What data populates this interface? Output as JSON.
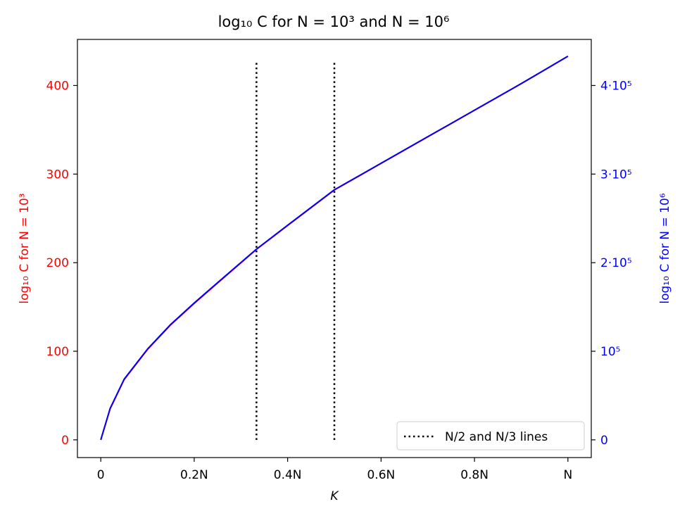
{
  "chart_data": {
    "type": "line",
    "title": "log₁₀ C for N = 10³ and N = 10⁶",
    "xlabel": "K",
    "ylabel_left": "log₁₀ C for N = 10³",
    "ylabel_right": "log₁₀ C for N = 10⁶",
    "xlim": [
      -0.05,
      1.05
    ],
    "ylim_left": [
      -20,
      452
    ],
    "ylim_right": [
      -20000,
      452000
    ],
    "x_ticks": [
      {
        "value": 0,
        "label": "0"
      },
      {
        "value": 0.2,
        "label": "0.2N"
      },
      {
        "value": 0.4,
        "label": "0.4N"
      },
      {
        "value": 0.6,
        "label": "0.6N"
      },
      {
        "value": 0.8,
        "label": "0.8N"
      },
      {
        "value": 1.0,
        "label": "N"
      }
    ],
    "y_ticks_left": [
      {
        "value": 0,
        "label": "0"
      },
      {
        "value": 100,
        "label": "100"
      },
      {
        "value": 200,
        "label": "200"
      },
      {
        "value": 300,
        "label": "300"
      },
      {
        "value": 400,
        "label": "400"
      }
    ],
    "y_ticks_right": [
      {
        "value": 0,
        "label": "0"
      },
      {
        "value": 100000,
        "label": "10⁵"
      },
      {
        "value": 200000,
        "label": "2·10⁵"
      },
      {
        "value": 300000,
        "label": "3·10⁵"
      },
      {
        "value": 400000,
        "label": "4·10⁵"
      }
    ],
    "series": [
      {
        "axis": "left",
        "color": "#ff0000",
        "x": [
          0,
          0.02,
          0.05,
          0.1,
          0.15,
          0.2,
          0.25,
          0.3333,
          0.4,
          0.5,
          0.6,
          0.7,
          0.8,
          0.9,
          1.0
        ],
        "y": [
          0,
          35,
          68,
          102,
          130,
          154,
          177,
          215,
          242,
          282,
          312,
          342,
          372,
          402,
          433
        ]
      },
      {
        "axis": "right",
        "color": "#0000ff",
        "x": [
          0,
          0.02,
          0.05,
          0.1,
          0.15,
          0.2,
          0.25,
          0.3333,
          0.4,
          0.5,
          0.6,
          0.7,
          0.8,
          0.9,
          1.0
        ],
        "y": [
          0,
          35500,
          68500,
          102500,
          130500,
          154500,
          177500,
          215300,
          242300,
          282300,
          312200,
          342200,
          372100,
          402100,
          433000
        ]
      }
    ],
    "vlines": [
      {
        "x": 0.3333,
        "y_range": [
          0,
          428
        ],
        "color": "#000000",
        "style": "dotted"
      },
      {
        "x": 0.5,
        "y_range": [
          0,
          428
        ],
        "color": "#000000",
        "style": "dotted"
      }
    ],
    "legend": {
      "placement": "lower-right",
      "entries": [
        {
          "label": "N/2 and N/3 lines",
          "style": "dotted",
          "color": "#000000"
        }
      ]
    },
    "colors": {
      "left_axis": "#ff0000",
      "right_axis": "#0000ff",
      "frame": "#000000"
    },
    "grid": false
  }
}
